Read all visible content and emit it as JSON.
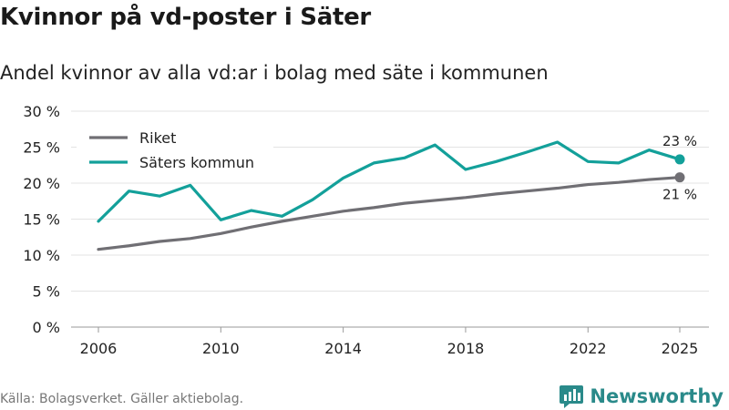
{
  "header": {
    "title": "Kvinnor på vd-poster i Säter",
    "subtitle": "Andel kvinnor av alla vd:ar i bolag med säte i kommunen"
  },
  "footer": {
    "source": "Källa: Bolagsverket. Gäller aktiebolag.",
    "brand": "Newsworthy"
  },
  "colors": {
    "riket": "#706f74",
    "saters": "#13a09a",
    "grid": "#e3e3e3",
    "brand": "#2a8a8a"
  },
  "chart_data": {
    "type": "line",
    "title": "Kvinnor på vd-poster i Säter",
    "xlabel": "",
    "ylabel": "",
    "xlim": [
      2006,
      2025
    ],
    "ylim": [
      0,
      30
    ],
    "x_ticks": [
      "2006",
      "2010",
      "2014",
      "2018",
      "2022",
      "2025"
    ],
    "y_ticks": [
      "0 %",
      "5 %",
      "10 %",
      "15 %",
      "20 %",
      "25 %",
      "30 %"
    ],
    "x": [
      2006,
      2007,
      2008,
      2009,
      2010,
      2011,
      2012,
      2013,
      2014,
      2015,
      2016,
      2017,
      2018,
      2019,
      2020,
      2021,
      2022,
      2023,
      2024,
      2025
    ],
    "series": [
      {
        "name": "Riket",
        "values": [
          10.8,
          11.3,
          11.9,
          12.3,
          13.0,
          13.9,
          14.7,
          15.4,
          16.1,
          16.6,
          17.2,
          17.6,
          18.0,
          18.5,
          18.9,
          19.3,
          19.8,
          20.1,
          20.5,
          20.8
        ],
        "end_label": "21 %"
      },
      {
        "name": "Säters kommun",
        "values": [
          14.7,
          18.9,
          18.2,
          19.7,
          14.9,
          16.2,
          15.4,
          17.7,
          20.7,
          22.8,
          23.5,
          25.3,
          21.9,
          23.0,
          24.3,
          25.7,
          23.0,
          22.8,
          24.6,
          23.3
        ],
        "end_label": "23 %"
      }
    ],
    "legend": [
      "Riket",
      "Säters kommun"
    ],
    "legend_position": "top-left",
    "grid": true
  }
}
